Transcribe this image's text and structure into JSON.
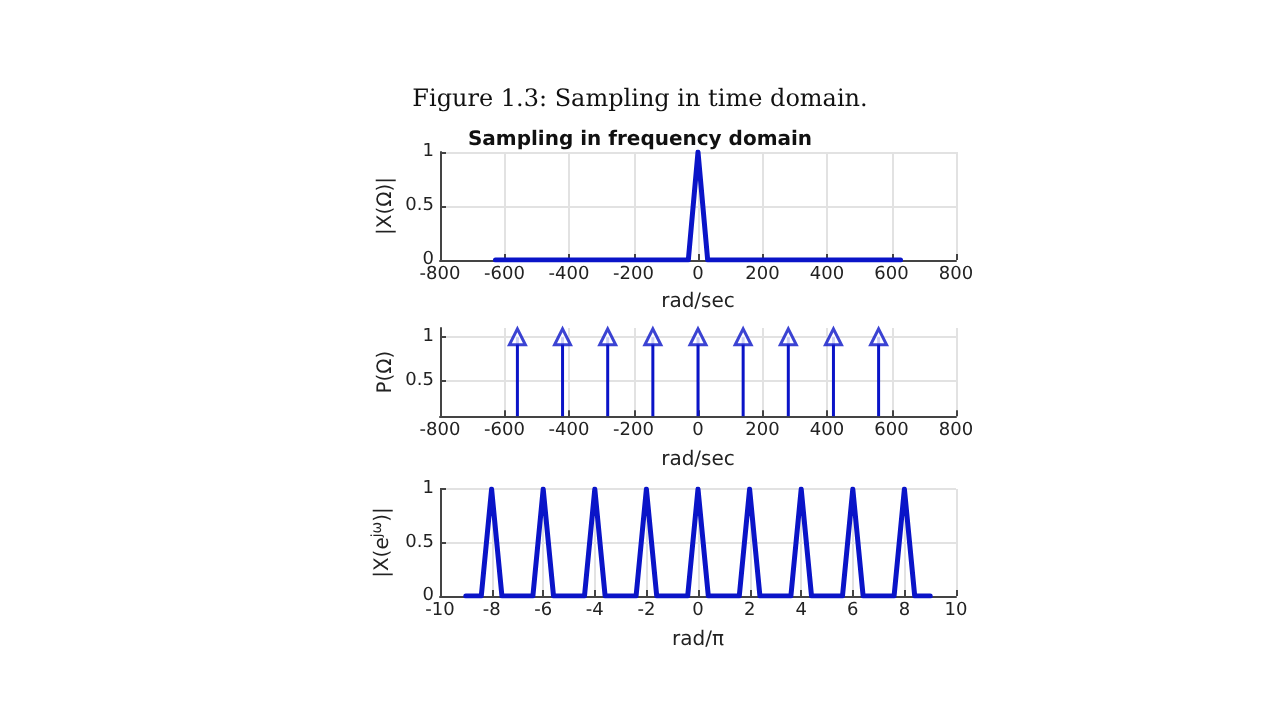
{
  "chart_data": [
    {
      "type": "line",
      "title": "Figure 1.3: Sampling in time domain.",
      "subtitle": "Sampling in frequency domain",
      "xlabel": "rad/sec",
      "ylabel": "|X(Ω)|",
      "x": [
        -628,
        -30,
        0,
        30,
        628
      ],
      "series": [
        {
          "color": "#0a14c8",
          "values": [
            0,
            0,
            1,
            0,
            0
          ]
        }
      ],
      "xlim": [
        -800,
        800
      ],
      "xticks": [
        -800,
        -600,
        -400,
        -200,
        0,
        200,
        400,
        600,
        800
      ],
      "ylim": [
        0,
        1
      ],
      "yticks": [
        0,
        0.5,
        1
      ],
      "grid": true,
      "marker": "none"
    },
    {
      "type": "lollipop",
      "xlabel": "rad/sec",
      "ylabel": "P(Ω)",
      "x": [
        -560,
        -420,
        -280,
        -140,
        0,
        140,
        280,
        420,
        560
      ],
      "series": [
        {
          "color": "#0a14c8",
          "values": [
            1,
            1,
            1,
            1,
            1,
            1,
            1,
            1,
            1
          ]
        }
      ],
      "xlim": [
        -800,
        800
      ],
      "xticks": [
        -800,
        -600,
        -400,
        -200,
        0,
        200,
        400,
        600,
        800
      ],
      "ylim": [
        0.1,
        1.1
      ],
      "yticks": [
        0.5,
        1
      ],
      "grid": true,
      "marker": "triangle"
    },
    {
      "type": "line",
      "xlabel": "rad/π",
      "ylabel": "|X(e$^{jω}$)|",
      "x": [
        -9,
        -8.4,
        -8,
        -7.6,
        -6.4,
        -6,
        -5.6,
        -4.4,
        -4,
        -3.6,
        -2.4,
        -2,
        -1.6,
        -0.4,
        0,
        0.4,
        1.6,
        2,
        2.4,
        3.6,
        4,
        4.4,
        5.6,
        6,
        6.4,
        7.6,
        8,
        8.4,
        9
      ],
      "series": [
        {
          "color": "#0a14c8",
          "values": [
            0,
            0,
            1,
            0,
            0,
            1,
            0,
            0,
            1,
            0,
            0,
            1,
            0,
            0,
            1,
            0,
            0,
            1,
            0,
            0,
            1,
            0,
            0,
            1,
            0,
            0,
            1,
            0,
            0
          ]
        }
      ],
      "xlim": [
        -10,
        10
      ],
      "xticks": [
        -10,
        -8,
        -6,
        -4,
        -2,
        0,
        2,
        4,
        6,
        8,
        10
      ],
      "ylim": [
        0,
        1
      ],
      "yticks": [
        0,
        0.5,
        1
      ],
      "grid": true,
      "marker": "none"
    }
  ]
}
